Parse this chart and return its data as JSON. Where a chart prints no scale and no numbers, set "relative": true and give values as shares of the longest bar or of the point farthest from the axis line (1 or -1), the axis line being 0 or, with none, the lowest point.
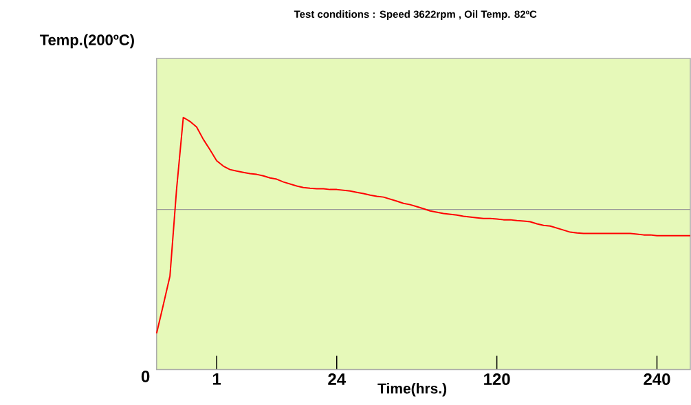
{
  "chart_data": {
    "type": "line",
    "title": "Test conditions : Speed 3622rpm    ,    Oil Temp. 82ºC",
    "xlabel": "Time(hrs.)",
    "ylabel": "Temp.(200ºC)",
    "annotations": [
      "0"
    ],
    "relative": true,
    "categories": [
      null,
      null,
      null,
      null,
      null,
      null,
      null,
      null,
      null,
      "1",
      null,
      null,
      null,
      null,
      null,
      null,
      null,
      null,
      null,
      null,
      null,
      null,
      null,
      null,
      null,
      null,
      null,
      "24",
      null,
      null,
      null,
      null,
      null,
      null,
      null,
      null,
      null,
      null,
      null,
      null,
      null,
      null,
      null,
      null,
      null,
      null,
      null,
      null,
      null,
      null,
      null,
      "120",
      null,
      null,
      null,
      null,
      null,
      null,
      null,
      null,
      null,
      null,
      null,
      null,
      null,
      null,
      null,
      null,
      null,
      null,
      null,
      null,
      null,
      null,
      null,
      "240",
      null,
      null,
      null,
      null,
      null
    ],
    "series": [
      {
        "color": "#ff0000",
        "values": [
          0.144,
          0.256,
          0.371,
          0.717,
          1,
          0.984,
          0.962,
          0.913,
          0.872,
          0.828,
          0.807,
          0.793,
          0.787,
          0.782,
          0.777,
          0.774,
          0.768,
          0.76,
          0.755,
          0.744,
          0.736,
          0.728,
          0.722,
          0.719,
          0.717,
          0.717,
          0.714,
          0.714,
          0.711,
          0.708,
          0.703,
          0.698,
          0.692,
          0.687,
          0.684,
          0.676,
          0.668,
          0.659,
          0.654,
          0.646,
          0.638,
          0.629,
          0.624,
          0.619,
          0.616,
          0.613,
          0.608,
          0.605,
          0.602,
          0.599,
          0.599,
          0.597,
          0.594,
          0.594,
          0.591,
          0.589,
          0.586,
          0.578,
          0.572,
          0.569,
          0.561,
          0.553,
          0.545,
          0.542,
          0.54,
          0.54,
          0.54,
          0.54,
          0.54,
          0.54,
          0.54,
          0.54,
          0.537,
          0.534,
          0.534,
          0.531,
          0.531,
          0.531,
          0.531,
          0.531,
          0.531
        ]
      }
    ],
    "ref_lines": [
      {
        "axis": "y",
        "value": 0.635,
        "color": "#999999"
      }
    ]
  }
}
